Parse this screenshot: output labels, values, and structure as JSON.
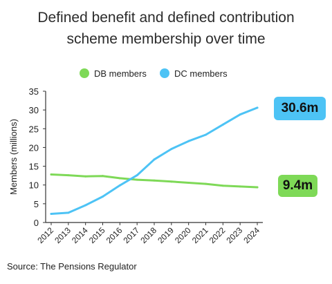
{
  "title_lines": [
    "Defined benefit and defined contribution",
    "scheme membership over time"
  ],
  "source": "Source: The Pensions Regulator",
  "chart_data": {
    "type": "line",
    "x": [
      "2012",
      "2013",
      "2014",
      "2015",
      "2016",
      "2017",
      "2018",
      "2019",
      "2020",
      "2021",
      "2022",
      "2023",
      "2024"
    ],
    "series": [
      {
        "name": "DB members",
        "color": "#7ed957",
        "values": [
          12.8,
          12.6,
          12.3,
          12.4,
          11.8,
          11.4,
          11.2,
          10.9,
          10.6,
          10.3,
          9.8,
          9.6,
          9.4
        ]
      },
      {
        "name": "DC members",
        "color": "#4dc3f5",
        "values": [
          2.3,
          2.6,
          4.6,
          6.9,
          9.9,
          12.6,
          16.8,
          19.6,
          21.7,
          23.4,
          26.1,
          28.8,
          30.6
        ]
      }
    ],
    "ylabel": "Members (millions)",
    "xlabel": "",
    "ylim": [
      0,
      35
    ],
    "yticks": [
      0,
      5,
      10,
      15,
      20,
      25,
      30,
      35
    ],
    "grid": false,
    "legend_position": "top",
    "annotations": [
      {
        "series": "DC members",
        "text": "30.6m",
        "color": "#4dc3f5"
      },
      {
        "series": "DB members",
        "text": "9.4m",
        "color": "#7ed957"
      }
    ]
  }
}
